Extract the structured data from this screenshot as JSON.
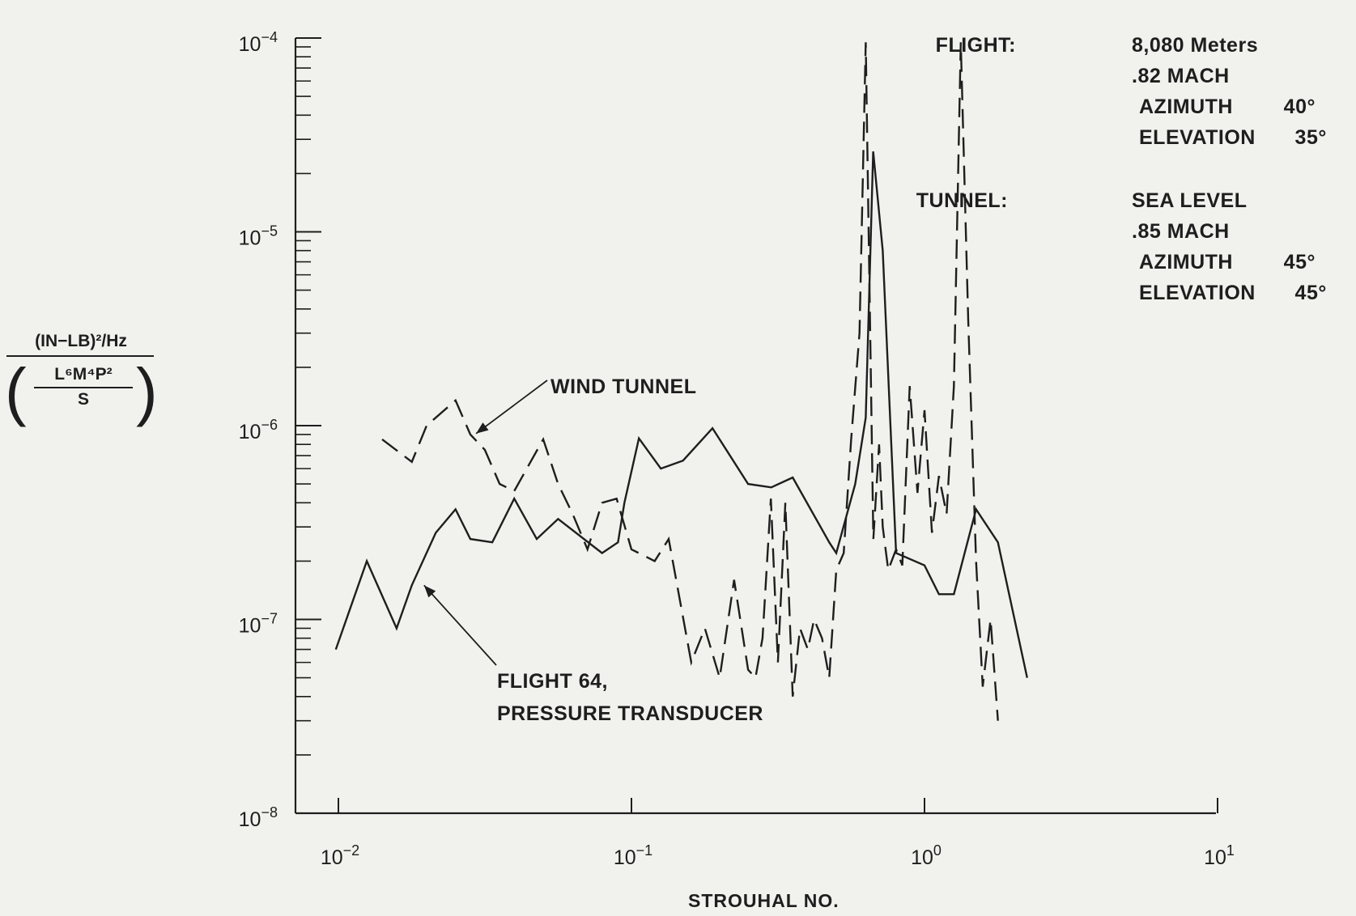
{
  "chart_data": {
    "type": "line",
    "xlabel": "STROUHAL NO.",
    "ylabel": {
      "numerator": "(IN−LB)²/Hz",
      "denominator_top": "L⁶M⁴P²",
      "denominator_bottom": "S"
    },
    "x_scale": "log",
    "y_scale": "log",
    "xlim": [
      0.0045,
      12
    ],
    "ylim": [
      1e-08,
      0.0001
    ],
    "x_ticks": [
      {
        "value": 0.01,
        "base": "10",
        "exp": "−2"
      },
      {
        "value": 0.1,
        "base": "10",
        "exp": "−1"
      },
      {
        "value": 1,
        "base": "10",
        "exp": "0"
      },
      {
        "value": 10,
        "base": "10",
        "exp": "1"
      }
    ],
    "y_ticks": [
      {
        "value": 0.0001,
        "base": "10",
        "exp": "−4"
      },
      {
        "value": 1e-05,
        "base": "10",
        "exp": "−5"
      },
      {
        "value": 1e-06,
        "base": "10",
        "exp": "−6"
      },
      {
        "value": 1e-07,
        "base": "10",
        "exp": "−7"
      },
      {
        "value": 1e-08,
        "base": "10",
        "exp": "−8"
      }
    ],
    "grid": false,
    "series": [
      {
        "name": "FLIGHT 64, PRESSURE TRANSDUCER",
        "style": "solid",
        "x": [
          0.0098,
          0.0125,
          0.0158,
          0.0178,
          0.0215,
          0.0251,
          0.0282,
          0.0335,
          0.0398,
          0.0475,
          0.0562,
          0.0794,
          0.09,
          0.0946,
          0.106,
          0.126,
          0.15,
          0.189,
          0.25,
          0.3,
          0.355,
          0.473,
          0.5,
          0.58,
          0.63,
          0.668,
          0.72,
          0.8,
          1.0,
          1.12,
          1.26,
          1.5,
          1.78,
          2.24
        ],
        "y": [
          7e-08,
          2e-07,
          9e-08,
          1.5e-07,
          2.8e-07,
          3.7e-07,
          2.6e-07,
          2.5e-07,
          4.2e-07,
          2.6e-07,
          3.3e-07,
          2.2e-07,
          2.5e-07,
          4e-07,
          8.6e-07,
          6e-07,
          6.6e-07,
          9.7e-07,
          5e-07,
          4.8e-07,
          5.4e-07,
          2.5e-07,
          2.2e-07,
          5e-07,
          1.1e-06,
          2.6e-05,
          8e-06,
          2.2e-07,
          1.9e-07,
          1.35e-07,
          1.35e-07,
          3.7e-07,
          2.5e-07,
          5e-08
        ]
      },
      {
        "name": "WIND TUNNEL",
        "style": "dashed",
        "x": [
          0.0141,
          0.0178,
          0.02,
          0.0251,
          0.0282,
          0.0316,
          0.0355,
          0.0398,
          0.05,
          0.0562,
          0.063,
          0.0708,
          0.0794,
          0.089,
          0.1,
          0.12,
          0.134,
          0.16,
          0.178,
          0.2,
          0.224,
          0.25,
          0.265,
          0.28,
          0.299,
          0.316,
          0.335,
          0.355,
          0.376,
          0.4,
          0.42,
          0.447,
          0.473,
          0.5,
          0.53,
          0.562,
          0.6,
          0.63,
          0.669,
          0.7,
          0.72,
          0.752,
          0.8,
          0.84,
          0.89,
          0.946,
          1.0,
          1.06,
          1.12,
          1.19,
          1.26,
          1.33,
          1.41,
          1.5,
          1.58,
          1.68,
          1.78
        ],
        "y": [
          8.5e-07,
          6.5e-07,
          1e-06,
          1.35e-06,
          9e-07,
          7.5e-07,
          5e-07,
          4.6e-07,
          8.5e-07,
          5e-07,
          3.5e-07,
          2.3e-07,
          4e-07,
          4.2e-07,
          2.3e-07,
          2e-07,
          2.6e-07,
          6e-08,
          9e-08,
          5e-08,
          1.6e-07,
          5.5e-08,
          5e-08,
          8e-08,
          4.2e-07,
          6e-08,
          4e-07,
          4e-08,
          9e-08,
          7e-08,
          1e-07,
          8e-08,
          5e-08,
          1.8e-07,
          2.2e-07,
          8.5e-07,
          3e-06,
          9.5e-05,
          2.6e-07,
          8e-07,
          3e-07,
          1.8e-07,
          2.3e-07,
          1.9e-07,
          1.6e-06,
          4.5e-07,
          1.2e-06,
          2.8e-07,
          5.5e-07,
          3.5e-07,
          1.6e-06,
          9.5e-05,
          3.5e-06,
          2e-07,
          4.5e-08,
          1e-07,
          3e-08
        ]
      }
    ],
    "annotations": [
      {
        "id": "wind",
        "lines": [
          "WIND TUNNEL"
        ],
        "series": "WIND TUNNEL",
        "x": 0.0295,
        "y": 9.1e-07
      },
      {
        "id": "flight",
        "lines": [
          "FLIGHT 64,",
          "PRESSURE TRANSDUCER"
        ],
        "series": "FLIGHT 64, PRESSURE TRANSDUCER",
        "x": 0.0196,
        "y": 1.5e-07
      }
    ]
  },
  "conditions": {
    "flight": {
      "heading": "FLIGHT:",
      "lines": [
        {
          "label": "8,080 Meters",
          "value": ""
        },
        {
          "label": ".82 MACH",
          "value": ""
        },
        {
          "label": "AZIMUTH",
          "value": "40°"
        },
        {
          "label": "ELEVATION",
          "value": "35°"
        }
      ]
    },
    "tunnel": {
      "heading": "TUNNEL:",
      "lines": [
        {
          "label": "SEA LEVEL",
          "value": ""
        },
        {
          "label": ".85 MACH",
          "value": ""
        },
        {
          "label": "AZIMUTH",
          "value": "45°"
        },
        {
          "label": "ELEVATION",
          "value": "45°"
        }
      ]
    }
  }
}
